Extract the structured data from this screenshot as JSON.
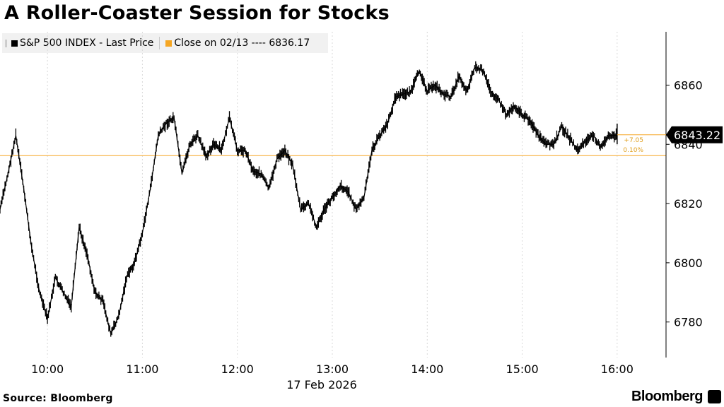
{
  "title": "A Roller-Coaster Session for Stocks",
  "legend": {
    "series_label": "S&P 500 INDEX - Last Price",
    "reference_label": "Close on 02/13 ---- 6836.17"
  },
  "source": "Source: Bloomberg",
  "brand": "Bloomberg",
  "colors": {
    "series": "#000000",
    "reference": "#f5a623",
    "grid": "#d9d9d9",
    "change": "#e0a020"
  },
  "chart_data": {
    "type": "line",
    "title": "A Roller-Coaster Session for Stocks",
    "xlabel": "17 Feb 2026",
    "ylabel": "",
    "x_ticks": [
      "10:00",
      "11:00",
      "12:00",
      "13:00",
      "14:00",
      "15:00",
      "16:00"
    ],
    "y_ticks": [
      6780,
      6800,
      6820,
      6840,
      6860
    ],
    "xlim": [
      "09:30",
      "16:30"
    ],
    "ylim": [
      6768,
      6878
    ],
    "grid": "vertical dotted",
    "legend_position": "top-left",
    "series": [
      {
        "name": "S&P 500 INDEX - Last Price",
        "x": [
          "09:30",
          "09:35",
          "09:40",
          "09:45",
          "09:50",
          "09:55",
          "10:00",
          "10:05",
          "10:10",
          "10:15",
          "10:20",
          "10:25",
          "10:30",
          "10:35",
          "10:40",
          "10:45",
          "10:50",
          "10:55",
          "11:00",
          "11:05",
          "11:10",
          "11:15",
          "11:20",
          "11:25",
          "11:30",
          "11:35",
          "11:40",
          "11:45",
          "11:50",
          "11:55",
          "12:00",
          "12:05",
          "12:10",
          "12:15",
          "12:20",
          "12:25",
          "12:30",
          "12:35",
          "12:40",
          "12:45",
          "12:50",
          "12:55",
          "13:00",
          "13:05",
          "13:10",
          "13:15",
          "13:20",
          "13:25",
          "13:30",
          "13:35",
          "13:40",
          "13:45",
          "13:50",
          "13:55",
          "14:00",
          "14:05",
          "14:10",
          "14:15",
          "14:20",
          "14:25",
          "14:30",
          "14:35",
          "14:40",
          "14:45",
          "14:50",
          "14:55",
          "15:00",
          "15:05",
          "15:10",
          "15:15",
          "15:20",
          "15:25",
          "15:30",
          "15:35",
          "15:40",
          "15:45",
          "15:50",
          "15:55",
          "16:00"
        ],
        "values": [
          6818,
          6830,
          6843,
          6825,
          6805,
          6790,
          6781,
          6795,
          6790,
          6785,
          6812,
          6803,
          6790,
          6787,
          6776,
          6782,
          6795,
          6800,
          6810,
          6825,
          6843,
          6847,
          6849,
          6830,
          6840,
          6843,
          6836,
          6840,
          6838,
          6849,
          6838,
          6838,
          6831,
          6830,
          6825,
          6835,
          6838,
          6833,
          6818,
          6820,
          6812,
          6818,
          6822,
          6826,
          6824,
          6818,
          6822,
          6838,
          6843,
          6847,
          6856,
          6857,
          6858,
          6865,
          6858,
          6860,
          6857,
          6856,
          6863,
          6858,
          6866,
          6865,
          6858,
          6855,
          6850,
          6853,
          6850,
          6848,
          6843,
          6840,
          6840,
          6846,
          6842,
          6838,
          6841,
          6843,
          6839,
          6843,
          6843
        ]
      }
    ],
    "reference_line": {
      "label": "Close on 02/13",
      "value": 6836.17
    },
    "last_value": {
      "value": "6843.22",
      "change": "+7.05",
      "change_pct": "0.10%"
    }
  }
}
